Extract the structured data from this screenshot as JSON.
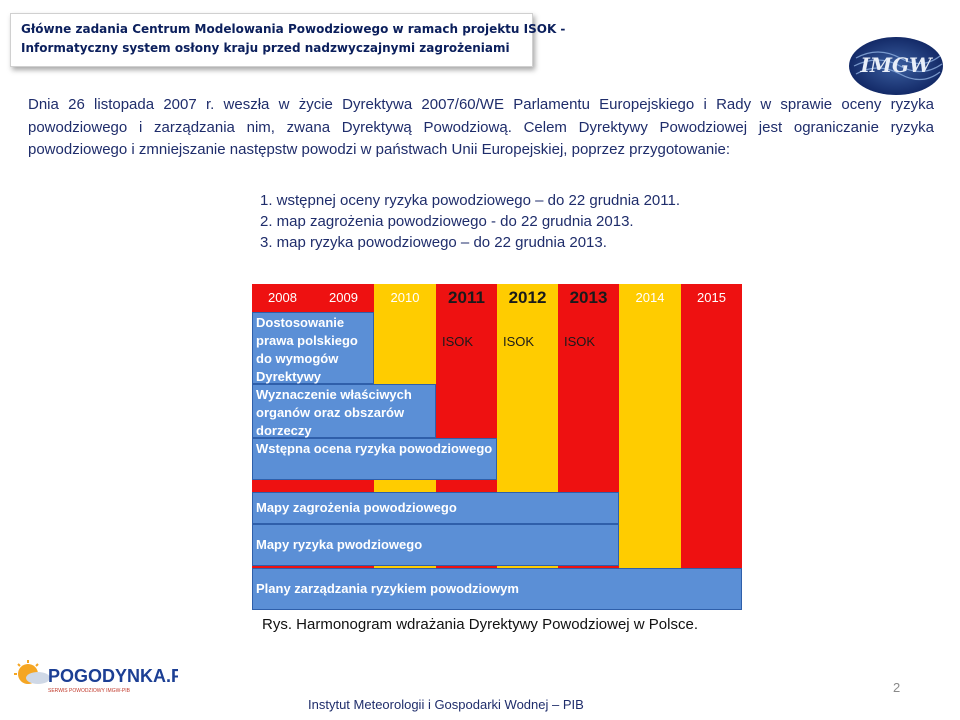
{
  "header": {
    "title_line1": "Główne zadania Centrum Modelowania Powodziowego w ramach projektu ISOK -",
    "title_line2": "Informatyczny system osłony kraju przed nadzwyczajnymi zagrożeniami",
    "logo_text": "IMGW"
  },
  "intro": "Dnia 26 listopada 2007 r. weszła w życie Dyrektywa 2007/60/WE Parlamentu Europejskiego i Rady w sprawie oceny ryzyka powodziowego i zarządzania nim, zwana Dyrektywą Powodziową. Celem Dyrektywy Powodziowej jest ograniczanie ryzyka powodziowego i zmniejszanie następstw powodzi w państwach Unii Europejskiej, poprzez przygotowanie:",
  "steps": [
    "1. wstępnej oceny ryzyka powodziowego – do 22 grudnia 2011.",
    "2. map zagrożenia powodziowego - do 22 grudnia 2013.",
    "3. map ryzyka powodziowego – do 22 grudnia 2013."
  ],
  "chart": {
    "years": [
      "2008",
      "2009",
      "2010",
      "2011",
      "2012",
      "2013",
      "2014",
      "2015"
    ],
    "isok_label": "ISOK",
    "tasks": [
      {
        "name": "Dostosowanie prawa polskiego do wymogów Dyrektywy",
        "start_year": 2008,
        "end_year": 2009
      },
      {
        "name": "Wyznaczenie właściwych organów oraz obszarów dorzeczy",
        "start_year": 2008,
        "end_year": 2010
      },
      {
        "name": "Wstępna ocena ryzyka powodziowego",
        "start_year": 2008,
        "end_year": 2011
      },
      {
        "name": "Mapy zagrożenia powodziowego",
        "start_year": 2008,
        "end_year": 2013
      },
      {
        "name": "Mapy ryzyka pwodziowego",
        "start_year": 2008,
        "end_year": 2013
      },
      {
        "name": "Plany zarządzania ryzykiem powodziowym",
        "start_year": 2008,
        "end_year": 2015
      }
    ],
    "colors": {
      "red": "#ee1111",
      "yellow": "#ffcc00",
      "blue": "#5b8fd6"
    }
  },
  "caption": "Rys.  Harmonogram wdrażania Dyrektywy Powodziowej w Polsce.",
  "footer": "Instytut Meteorologii i Gospodarki Wodnej – PIB",
  "page_number": "2",
  "bottom_logo": {
    "name": "POGODYNKA.PL",
    "tagline": "SERWIS POWODZIOWY IMGW-PIB"
  }
}
